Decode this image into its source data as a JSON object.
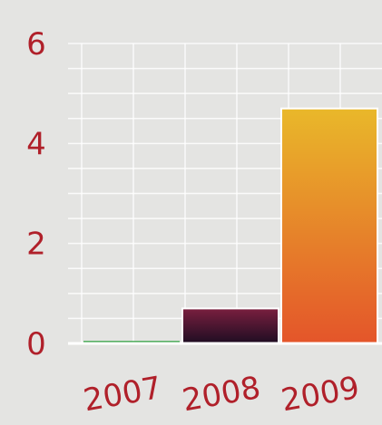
{
  "chart_data": {
    "type": "bar",
    "title": "",
    "xlabel": "",
    "ylabel": "",
    "categories": [
      "2007",
      "2008",
      "2009"
    ],
    "values": [
      0.05,
      0.7,
      4.7
    ],
    "ylim": [
      0,
      6
    ],
    "yticks": [
      0,
      2,
      4,
      6
    ],
    "grid": true,
    "legend": "none",
    "colors": {
      "2007": "#2e9e3e",
      "2008_top": "#7a1f3f",
      "2008_bottom": "#1e0d22",
      "2009_top": "#e9b82a",
      "2009_bottom": "#e4552a",
      "tick_text": "#b0202a",
      "grid": "#ffffff",
      "axis": "#ffffff"
    }
  }
}
